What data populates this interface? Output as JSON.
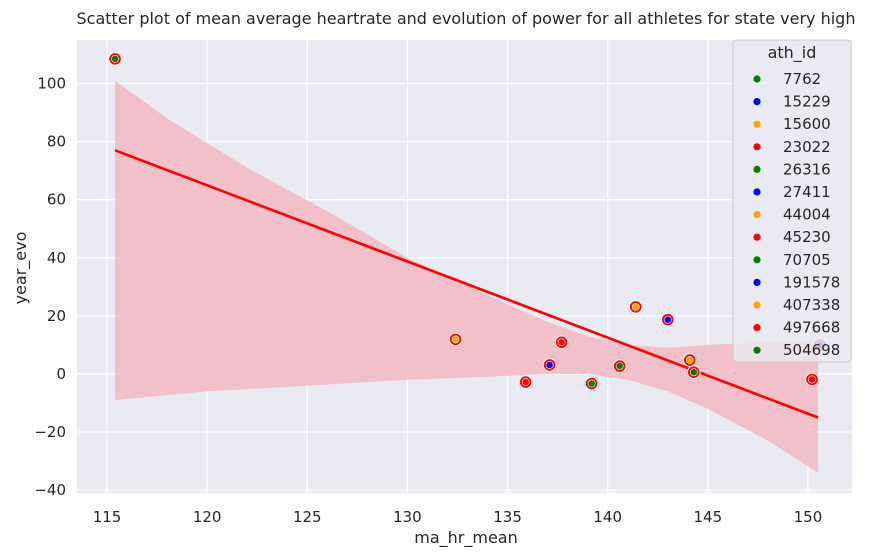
{
  "chart_data": {
    "type": "scatter",
    "title": "Scatter plot of mean average heartrate and evolution of power for all athletes for state very high",
    "xlabel": "ma_hr_mean",
    "ylabel": "year_evo",
    "xlim": [
      113.5,
      152.2
    ],
    "ylim": [
      -41,
      115
    ],
    "x_ticks": [
      115,
      120,
      125,
      130,
      135,
      140,
      145,
      150
    ],
    "y_ticks": [
      -40,
      -20,
      0,
      20,
      40,
      60,
      80,
      100
    ],
    "x_tick_labels": [
      "115",
      "120",
      "125",
      "130",
      "135",
      "140",
      "145",
      "150"
    ],
    "y_tick_labels": [
      "−40",
      "−20",
      "0",
      "20",
      "40",
      "60",
      "80",
      "100"
    ],
    "grid": true,
    "background_color": "#eaeaf2",
    "legend": {
      "title": "ath_id",
      "placement": "upper-right",
      "entries": [
        {
          "label": "7762",
          "color": "#008000"
        },
        {
          "label": "15229",
          "color": "#0000ff"
        },
        {
          "label": "15600",
          "color": "#ffa500"
        },
        {
          "label": "23022",
          "color": "#ff0000"
        },
        {
          "label": "26316",
          "color": "#008000"
        },
        {
          "label": "27411",
          "color": "#0000ff"
        },
        {
          "label": "44004",
          "color": "#ffa500"
        },
        {
          "label": "45230",
          "color": "#ff0000"
        },
        {
          "label": "70705",
          "color": "#008000"
        },
        {
          "label": "191578",
          "color": "#0000ff"
        },
        {
          "label": "407338",
          "color": "#ffa500"
        },
        {
          "label": "497668",
          "color": "#ff0000"
        },
        {
          "label": "504698",
          "color": "#008000"
        }
      ]
    },
    "regression": {
      "color": "#ff0000",
      "ci_color": "#f2b8c2",
      "line": [
        [
          115.4,
          77
        ],
        [
          150.5,
          -15
        ]
      ],
      "ci_upper": [
        [
          115.4,
          101
        ],
        [
          118,
          88
        ],
        [
          122,
          71
        ],
        [
          126,
          56
        ],
        [
          130,
          40
        ],
        [
          134,
          27
        ],
        [
          137,
          18
        ],
        [
          139,
          13
        ],
        [
          141,
          10
        ],
        [
          143,
          9
        ],
        [
          145,
          10
        ],
        [
          148,
          11
        ],
        [
          150.5,
          11
        ]
      ],
      "ci_lower": [
        [
          115.4,
          -9
        ],
        [
          120,
          -6
        ],
        [
          125,
          -4
        ],
        [
          130,
          -2
        ],
        [
          134,
          -1
        ],
        [
          137,
          0
        ],
        [
          139,
          0
        ],
        [
          141,
          -2
        ],
        [
          143,
          -6
        ],
        [
          145,
          -12
        ],
        [
          148,
          -23
        ],
        [
          150.5,
          -34
        ]
      ]
    },
    "highlight_points": {
      "color": "#ff0000",
      "points": [
        {
          "x": 115.4,
          "y": 108.5
        },
        {
          "x": 132.4,
          "y": 11.9
        },
        {
          "x": 135.9,
          "y": -2.8
        },
        {
          "x": 137.1,
          "y": 3.1
        },
        {
          "x": 137.7,
          "y": 10.9
        },
        {
          "x": 139.2,
          "y": -3.3
        },
        {
          "x": 140.6,
          "y": 2.7
        },
        {
          "x": 141.4,
          "y": 23.1
        },
        {
          "x": 143.0,
          "y": 18.7
        },
        {
          "x": 144.1,
          "y": 4.8
        },
        {
          "x": 144.3,
          "y": 0.6
        },
        {
          "x": 150.2,
          "y": -1.9
        },
        {
          "x": 150.6,
          "y": 10.0
        }
      ]
    },
    "series": [
      {
        "name": "7762",
        "color": "#008000",
        "x": [
          115.4
        ],
        "y": [
          108.5
        ]
      },
      {
        "name": "15229",
        "color": "#0000ff",
        "x": [
          137.1
        ],
        "y": [
          3.1
        ]
      },
      {
        "name": "15600",
        "color": "#ffa500",
        "x": [
          132.4
        ],
        "y": [
          11.9
        ]
      },
      {
        "name": "23022",
        "color": "#ff0000",
        "x": [
          135.9
        ],
        "y": [
          -2.8
        ]
      },
      {
        "name": "26316",
        "color": "#008000",
        "x": [
          139.2
        ],
        "y": [
          -3.3
        ]
      },
      {
        "name": "27411",
        "color": "#0000ff",
        "x": [
          143.0
        ],
        "y": [
          18.7
        ]
      },
      {
        "name": "44004",
        "color": "#ffa500",
        "x": [
          141.4
        ],
        "y": [
          23.1
        ]
      },
      {
        "name": "45230",
        "color": "#ff0000",
        "x": [
          137.7
        ],
        "y": [
          10.9
        ]
      },
      {
        "name": "70705",
        "color": "#008000",
        "x": [
          140.6
        ],
        "y": [
          2.7
        ]
      },
      {
        "name": "191578",
        "color": "#0000ff",
        "x": [
          150.6
        ],
        "y": [
          10.0
        ]
      },
      {
        "name": "407338",
        "color": "#ffa500",
        "x": [
          144.1
        ],
        "y": [
          4.8
        ]
      },
      {
        "name": "497668",
        "color": "#ff0000",
        "x": [
          150.2
        ],
        "y": [
          -1.9
        ]
      },
      {
        "name": "504698",
        "color": "#008000",
        "x": [
          144.3
        ],
        "y": [
          0.6
        ]
      }
    ]
  }
}
